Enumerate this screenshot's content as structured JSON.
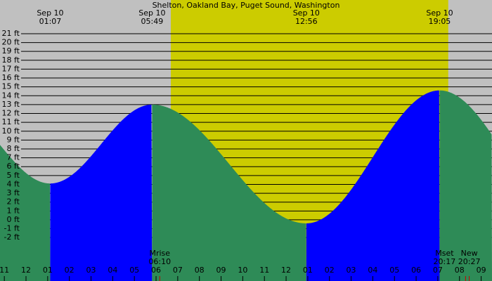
{
  "chart_data": {
    "type": "tide",
    "title": "Shelton, Oakland Bay, Puget Sound, Washington",
    "xlim": [
      -1.2,
      21.5
    ],
    "ylim": [
      -6.9,
      24.8
    ],
    "daylight": [
      6.68,
      19.48
    ],
    "events": [
      {
        "date": "Sep 10",
        "time": "01:07",
        "hour": 1.117,
        "height": 4.1
      },
      {
        "date": "Sep 10",
        "time": "05:49",
        "hour": 5.817,
        "height": 13.0
      },
      {
        "date": "Sep 10",
        "time": "12:56",
        "hour": 12.933,
        "height": -0.4
      },
      {
        "date": "Sep 10",
        "time": "19:05",
        "hour": 19.083,
        "height": 14.6
      }
    ],
    "moon": [
      {
        "label": "Mrise",
        "time": "06:10",
        "hour": 6.17
      },
      {
        "label": "Mset",
        "time": "20:17",
        "hour": 20.28
      },
      {
        "label": "New",
        "time": "20:27",
        "hour": 20.45
      }
    ],
    "yticks": [
      {
        "value": 21,
        "label": "21 ft"
      },
      {
        "value": 20,
        "label": "20 ft"
      },
      {
        "value": 19,
        "label": "19 ft"
      },
      {
        "value": 18,
        "label": "18 ft"
      },
      {
        "value": 17,
        "label": "17 ft"
      },
      {
        "value": 16,
        "label": "16 ft"
      },
      {
        "value": 15,
        "label": "15 ft"
      },
      {
        "value": 14,
        "label": "14 ft"
      },
      {
        "value": 13,
        "label": "13 ft"
      },
      {
        "value": 12,
        "label": "12 ft"
      },
      {
        "value": 11,
        "label": "11 ft"
      },
      {
        "value": 10,
        "label": "10 ft"
      },
      {
        "value": 9,
        "label": "9 ft"
      },
      {
        "value": 8,
        "label": "8 ft"
      },
      {
        "value": 7,
        "label": "7 ft"
      },
      {
        "value": 6,
        "label": "6 ft"
      },
      {
        "value": 5,
        "label": "5 ft"
      },
      {
        "value": 4,
        "label": "4 ft"
      },
      {
        "value": 3,
        "label": "3 ft"
      },
      {
        "value": 2,
        "label": "2 ft"
      },
      {
        "value": 1,
        "label": "1 ft"
      },
      {
        "value": 0,
        "label": "0 ft"
      },
      {
        "value": -1,
        "label": "-1 ft"
      },
      {
        "value": -2,
        "label": "-2 ft"
      }
    ],
    "xticks": [
      {
        "value": -1,
        "label": "11"
      },
      {
        "value": 0,
        "label": "12"
      },
      {
        "value": 1,
        "label": "01"
      },
      {
        "value": 2,
        "label": "02"
      },
      {
        "value": 3,
        "label": "03"
      },
      {
        "value": 4,
        "label": "04"
      },
      {
        "value": 5,
        "label": "05"
      },
      {
        "value": 6,
        "label": "06"
      },
      {
        "value": 7,
        "label": "07"
      },
      {
        "value": 8,
        "label": "08"
      },
      {
        "value": 9,
        "label": "09"
      },
      {
        "value": 10,
        "label": "10"
      },
      {
        "value": 11,
        "label": "11"
      },
      {
        "value": 12,
        "label": "12"
      },
      {
        "value": 13,
        "label": "01"
      },
      {
        "value": 14,
        "label": "02"
      },
      {
        "value": 15,
        "label": "03"
      },
      {
        "value": 16,
        "label": "04"
      },
      {
        "value": 17,
        "label": "05"
      },
      {
        "value": 18,
        "label": "06"
      },
      {
        "value": 19,
        "label": "07"
      },
      {
        "value": 20,
        "label": "08"
      },
      {
        "value": 21,
        "label": "09"
      }
    ],
    "colors": {
      "background": "#c0c0c0",
      "daylight": "#cccc00",
      "falling": "#2e8b57",
      "rising": "#0000ff"
    }
  }
}
